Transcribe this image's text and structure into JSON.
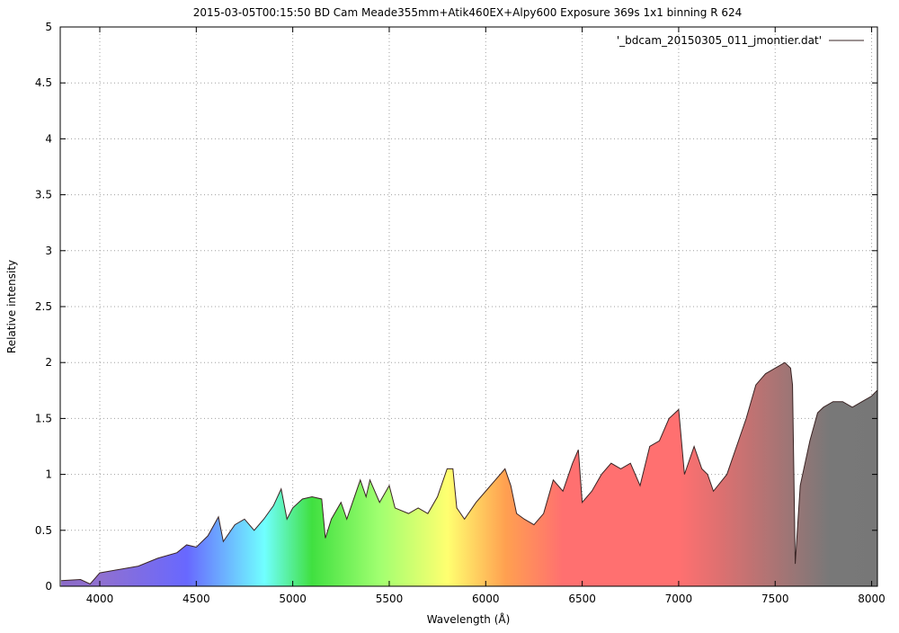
{
  "chart_data": {
    "type": "area",
    "title": "2015-03-05T00:15:50 BD Cam Meade355mm+Atik460EX+Alpy600 Exposure 369s 1x1 binning R 624",
    "xlabel": "Wavelength (Å)",
    "ylabel": "Relative intensity",
    "x": [
      3800,
      3900,
      3950,
      4000,
      4100,
      4200,
      4300,
      4400,
      4450,
      4500,
      4560,
      4615,
      4640,
      4700,
      4750,
      4800,
      4850,
      4900,
      4940,
      4970,
      5000,
      5050,
      5100,
      5150,
      5169,
      5200,
      5250,
      5280,
      5300,
      5350,
      5380,
      5400,
      5450,
      5500,
      5530,
      5600,
      5650,
      5700,
      5750,
      5800,
      5830,
      5850,
      5890,
      5950,
      6000,
      6050,
      6100,
      6130,
      6160,
      6200,
      6250,
      6300,
      6350,
      6400,
      6450,
      6480,
      6500,
      6550,
      6600,
      6650,
      6700,
      6750,
      6800,
      6850,
      6900,
      6950,
      7000,
      7030,
      7080,
      7120,
      7150,
      7180,
      7250,
      7300,
      7350,
      7400,
      7450,
      7500,
      7550,
      7580,
      7590,
      7604,
      7630,
      7680,
      7720,
      7750,
      7800,
      7850,
      7900,
      7950,
      8000,
      8028
    ],
    "series": [
      {
        "name": "'_bdcam_20150305_011_jmontier.dat'",
        "color": "#3a2424",
        "values": [
          0.05,
          0.06,
          0.02,
          0.12,
          0.15,
          0.18,
          0.25,
          0.3,
          0.37,
          0.35,
          0.45,
          0.62,
          0.4,
          0.55,
          0.6,
          0.5,
          0.6,
          0.72,
          0.87,
          0.6,
          0.7,
          0.78,
          0.8,
          0.78,
          0.43,
          0.6,
          0.75,
          0.6,
          0.7,
          0.95,
          0.8,
          0.95,
          0.75,
          0.9,
          0.7,
          0.65,
          0.7,
          0.65,
          0.8,
          1.05,
          1.05,
          0.7,
          0.6,
          0.75,
          0.85,
          0.95,
          1.05,
          0.9,
          0.65,
          0.6,
          0.55,
          0.65,
          0.95,
          0.85,
          1.1,
          1.22,
          0.75,
          0.85,
          1.0,
          1.1,
          1.05,
          1.1,
          0.9,
          1.25,
          1.3,
          1.5,
          1.58,
          1.0,
          1.25,
          1.05,
          1.0,
          0.85,
          1.0,
          1.25,
          1.5,
          1.8,
          1.9,
          1.95,
          2.0,
          1.95,
          1.8,
          0.2,
          0.9,
          1.3,
          1.55,
          1.6,
          1.65,
          1.65,
          1.6,
          1.65,
          1.7,
          1.75
        ]
      }
    ],
    "xlim": [
      3795,
      8030
    ],
    "ylim": [
      0,
      5
    ],
    "xticks": [
      4000,
      4500,
      5000,
      5500,
      6000,
      6500,
      7000,
      7500,
      8000
    ],
    "yticks": [
      0,
      0.5,
      1,
      1.5,
      2,
      2.5,
      3,
      3.5,
      4,
      4.5,
      5
    ],
    "grid": true,
    "legend": "upper right"
  }
}
